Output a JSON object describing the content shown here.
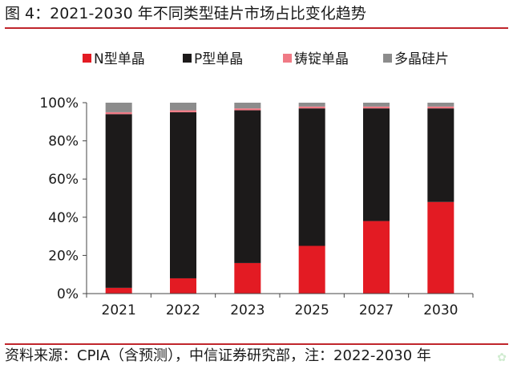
{
  "title": "图 4：2021-2030 年不同类型硅片市场占比变化趋势",
  "source": "资料来源：CPIA（含预测），中信证券研究部，注：2022-2030 年",
  "colors": {
    "n_type": "#e31b23",
    "p_type": "#1c1a1a",
    "cast_mono": "#f07a85",
    "multi": "#8c8c8c",
    "accent_line": "#c0262c"
  },
  "chart_data": {
    "type": "bar",
    "stacked": true,
    "categories": [
      "2021",
      "2022",
      "2023",
      "2025",
      "2027",
      "2030"
    ],
    "series": [
      {
        "name": "N型单晶",
        "values": [
          3,
          8,
          16,
          25,
          38,
          48
        ]
      },
      {
        "name": "P型单晶",
        "values": [
          91,
          87,
          80,
          72,
          59,
          49
        ]
      },
      {
        "name": "铸锭单晶",
        "values": [
          1,
          1,
          1,
          1,
          1,
          1
        ]
      },
      {
        "name": "多晶硅片",
        "values": [
          5,
          4,
          3,
          2,
          2,
          2
        ]
      }
    ],
    "yticks": [
      "0%",
      "20%",
      "40%",
      "60%",
      "80%",
      "100%"
    ],
    "ylim": [
      0,
      100
    ],
    "legend_position": "top",
    "grid": false
  }
}
